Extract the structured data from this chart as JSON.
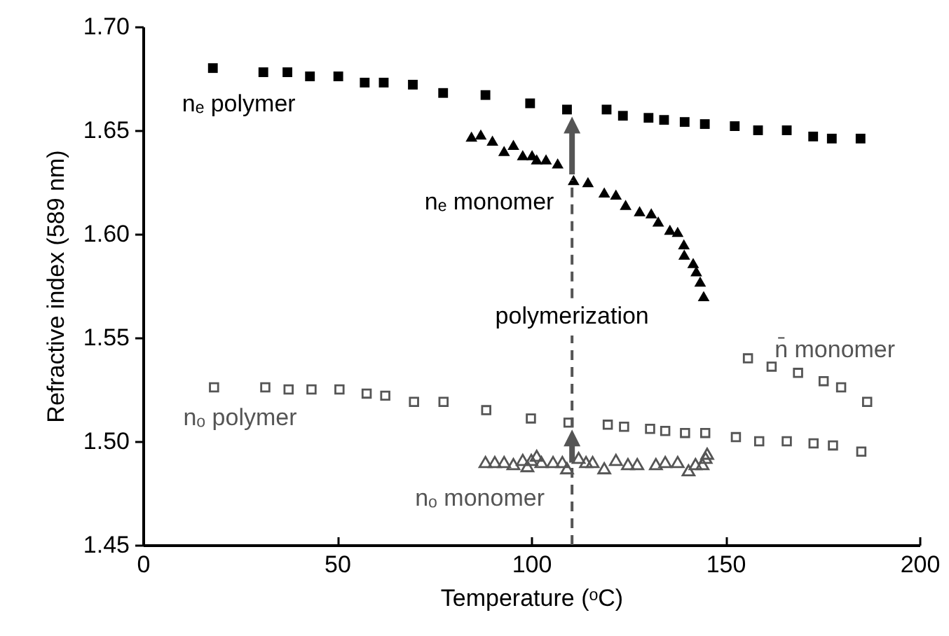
{
  "chart_data": {
    "type": "scatter",
    "xlabel": "Temperature (ᵒC)",
    "ylabel": "Refractive index (589 nm)",
    "xlim": [
      0,
      200
    ],
    "xticks": [
      0,
      50,
      100,
      150,
      200
    ],
    "ylim": [
      1.45,
      1.7
    ],
    "yticks": [
      {
        "value": 1.45,
        "label": "1.45"
      },
      {
        "value": 1.5,
        "label": "1.50"
      },
      {
        "value": 1.55,
        "label": "1.55"
      },
      {
        "value": 1.6,
        "label": "1.60"
      },
      {
        "value": 1.65,
        "label": "1.65"
      },
      {
        "value": 1.7,
        "label": "1.70"
      }
    ],
    "grid": false,
    "legend": false,
    "series": [
      {
        "name": "nₑ polymer",
        "color": "#000000",
        "marker": "square",
        "x": [
          18,
          31,
          37.2,
          43,
          50.3,
          57.1,
          62,
          69.5,
          77.3,
          88.2,
          99.7,
          109.2,
          119.4,
          123.6,
          130.2,
          134.2,
          139.5,
          144.7,
          152.4,
          158.4,
          165.8,
          172.6,
          177.4,
          184.8
        ],
        "values": [
          1.68,
          1.678,
          1.678,
          1.676,
          1.676,
          1.673,
          1.673,
          1.672,
          1.668,
          1.667,
          1.663,
          1.66,
          1.66,
          1.657,
          1.656,
          1.655,
          1.654,
          1.653,
          1.652,
          1.65,
          1.65,
          1.647,
          1.646,
          1.646
        ]
      },
      {
        "name": "nₑ monomer",
        "color": "#000000",
        "marker": "triangle",
        "x": [
          84.6,
          87,
          90,
          93,
          95.4,
          97.8,
          100.2,
          101.4,
          103.8,
          106.8,
          110.9,
          114.6,
          118.8,
          121.8,
          124.3,
          127.9,
          130.9,
          132.7,
          135.7,
          137.7,
          139.3,
          139.4,
          141.7,
          142.5,
          143.5,
          144.4
        ],
        "values": [
          1.647,
          1.648,
          1.645,
          1.64,
          1.643,
          1.638,
          1.638,
          1.636,
          1.636,
          1.634,
          1.626,
          1.625,
          1.62,
          1.619,
          1.614,
          1.611,
          1.61,
          1.606,
          1.602,
          1.601,
          1.595,
          1.59,
          1.586,
          1.582,
          1.577,
          1.57
        ]
      },
      {
        "name": "nₒ polymer",
        "color": "#555555",
        "marker": "square",
        "x": [
          18.3,
          31.5,
          37.5,
          43.4,
          50.6,
          57.6,
          62.4,
          69.8,
          77.4,
          88.4,
          99.9,
          109.6,
          119.7,
          123.9,
          130.6,
          134.5,
          139.6,
          144.8,
          152.7,
          158.7,
          165.8,
          172.7,
          177.7,
          185
        ],
        "values": [
          1.526,
          1.526,
          1.525,
          1.525,
          1.525,
          1.523,
          1.522,
          1.519,
          1.519,
          1.515,
          1.511,
          1.509,
          1.508,
          1.507,
          1.506,
          1.505,
          1.504,
          1.504,
          1.502,
          1.5,
          1.5,
          1.499,
          1.498,
          1.495
        ]
      },
      {
        "name": "nₒ monomer",
        "color": "#555555",
        "marker": "triangle",
        "x": [
          88.2,
          90.6,
          93,
          95.4,
          97.8,
          99,
          100,
          101.4,
          102.6,
          105.6,
          108,
          109.2,
          112.2,
          114.1,
          115.8,
          118.8,
          121.8,
          124.9,
          127.3,
          132.1,
          134.5,
          137.7,
          140.5,
          142.3,
          144.1,
          144.9,
          145.3
        ],
        "values": [
          1.49,
          1.49,
          1.49,
          1.489,
          1.491,
          1.488,
          1.491,
          1.493,
          1.49,
          1.49,
          1.49,
          1.487,
          1.492,
          1.49,
          1.49,
          1.487,
          1.491,
          1.489,
          1.489,
          1.489,
          1.49,
          1.49,
          1.486,
          1.489,
          1.489,
          1.492,
          1.494
        ]
      },
      {
        "name": "n̄ monomer",
        "color": "#555555",
        "marker": "square",
        "x": [
          155.8,
          161.9,
          168.7,
          175.3,
          179.8,
          186.5
        ],
        "values": [
          1.54,
          1.536,
          1.533,
          1.529,
          1.526,
          1.519
        ]
      }
    ],
    "ref_lines": [
      {
        "axis": "x",
        "value": 110.5,
        "label": "polymerization",
        "line_style": "dashed",
        "color": "#555555"
      }
    ]
  }
}
